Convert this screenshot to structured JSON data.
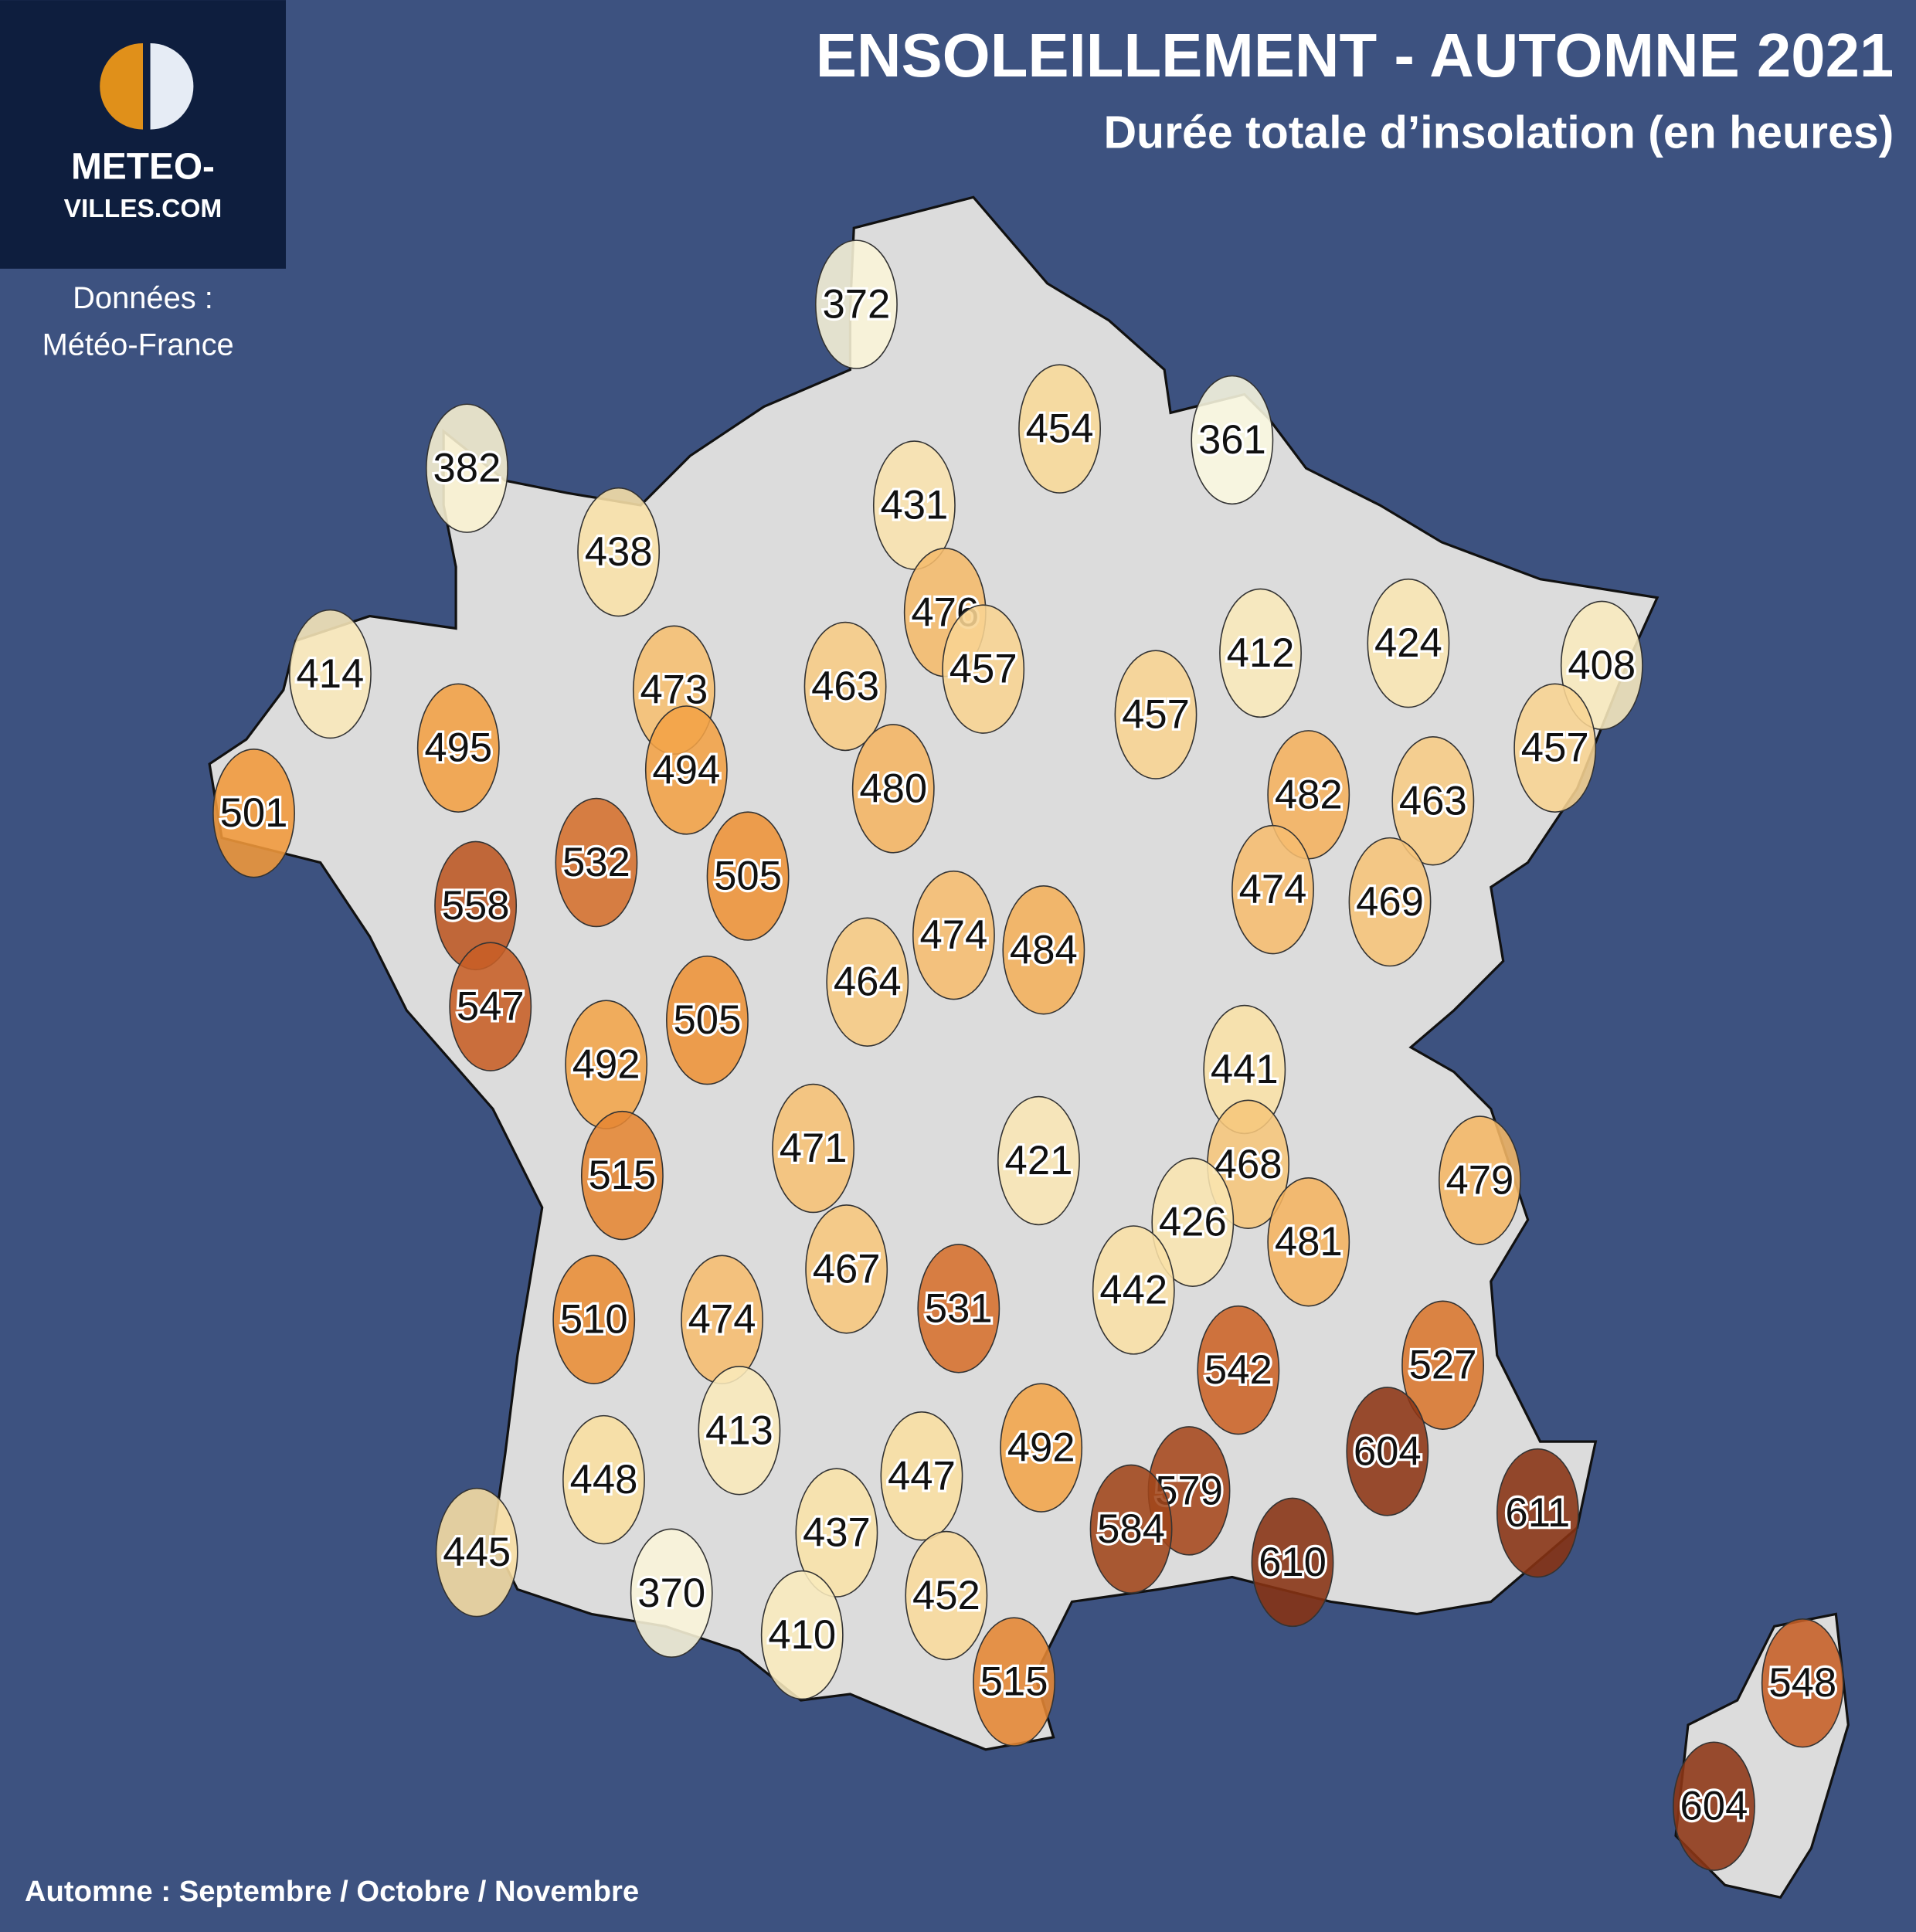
{
  "header": {
    "title": "ENSOLEILLEMENT - AUTOMNE 2021",
    "subtitle": "Durée totale d’insolation (en heures)"
  },
  "logo": {
    "line1": "METEO-",
    "line2": "VILLES.COM"
  },
  "source": {
    "line1": "Données :",
    "line2": "Météo-France"
  },
  "footer": "Automne : Septembre / Octobre / Novembre",
  "stations": [
    372,
    454,
    361,
    382,
    431,
    438,
    476,
    414,
    473,
    463,
    457,
    412,
    424,
    408,
    457,
    495,
    494,
    480,
    482,
    463,
    457,
    501,
    532,
    505,
    558,
    474,
    469,
    474,
    484,
    464,
    547,
    505,
    492,
    441,
    471,
    421,
    468,
    515,
    479,
    426,
    481,
    467,
    531,
    442,
    510,
    474,
    542,
    527,
    413,
    492,
    604,
    447,
    448,
    579,
    584,
    611,
    437,
    445,
    610,
    370,
    452,
    410,
    515,
    548,
    604
  ]
}
